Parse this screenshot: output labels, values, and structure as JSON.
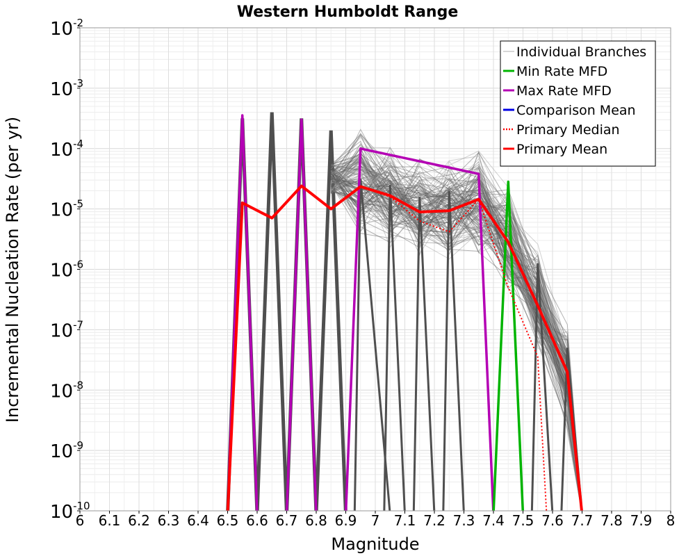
{
  "chart_data": {
    "type": "line",
    "title": "Western Humboldt Range",
    "xlabel": "Magnitude",
    "ylabel": "Incremental Nucleation Rate (per yr)",
    "xlim": [
      6,
      8
    ],
    "ylim_log10": [
      -10,
      -2
    ],
    "y_scale": "log",
    "x_ticks": [
      "6",
      "6.1",
      "6.2",
      "6.3",
      "6.4",
      "6.5",
      "6.6",
      "6.7",
      "6.8",
      "6.9",
      "7",
      "7.1",
      "7.2",
      "7.3",
      "7.4",
      "7.5",
      "7.6",
      "7.7",
      "7.8",
      "7.9",
      "8"
    ],
    "y_ticks": [
      {
        "base": "10",
        "exp": "-2"
      },
      {
        "base": "10",
        "exp": "-3"
      },
      {
        "base": "10",
        "exp": "-4"
      },
      {
        "base": "10",
        "exp": "-5"
      },
      {
        "base": "10",
        "exp": "-6"
      },
      {
        "base": "10",
        "exp": "-7"
      },
      {
        "base": "10",
        "exp": "-8"
      },
      {
        "base": "10",
        "exp": "-9"
      },
      {
        "base": "10",
        "exp": "-10"
      }
    ],
    "grid": true,
    "legend_position": "top-right",
    "legend": [
      {
        "label": "Individual Branches",
        "color": "#c8c8c8",
        "style": "solid"
      },
      {
        "label": "Min Rate MFD",
        "color": "#00b400",
        "style": "solid"
      },
      {
        "label": "Max Rate MFD",
        "color": "#b400b4",
        "style": "solid"
      },
      {
        "label": "Comparison Mean",
        "color": "#0000e6",
        "style": "solid"
      },
      {
        "label": "Primary Median",
        "color": "#ff0000",
        "style": "dotted"
      },
      {
        "label": "Primary Mean",
        "color": "#ff0000",
        "style": "solid"
      }
    ],
    "series": [
      {
        "name": "Primary Mean",
        "color": "#ff0000",
        "x": [
          6.5,
          6.55,
          6.65,
          6.75,
          6.85,
          6.95,
          7.05,
          7.15,
          7.25,
          7.35,
          7.45,
          7.55,
          7.65,
          7.7
        ],
        "log10_y": [
          -10.3,
          -4.9,
          -5.15,
          -4.62,
          -5.0,
          -4.63,
          -4.78,
          -5.05,
          -5.03,
          -4.84,
          -5.55,
          -6.6,
          -7.7,
          -10.3
        ]
      },
      {
        "name": "Primary Median",
        "color": "#ff0000",
        "x": [
          6.95,
          7.05,
          7.15,
          7.25,
          7.35,
          7.45,
          7.55,
          7.58
        ],
        "log10_y": [
          -4.63,
          -4.8,
          -5.2,
          -5.38,
          -4.84,
          -6.3,
          -7.45,
          -10.3
        ]
      },
      {
        "name": "Min Rate MFD",
        "color": "#00b400",
        "x": [
          7.4,
          7.45,
          7.5
        ],
        "log10_y": [
          -10.3,
          -4.55,
          -10.3
        ]
      },
      {
        "name": "Max Rate MFD",
        "color": "#b400b4",
        "x": [
          6.5,
          6.55,
          6.6,
          6.7,
          6.75,
          6.8,
          6.9,
          6.95,
          7.35,
          7.4
        ],
        "log10_y": [
          -10.3,
          -3.45,
          -10.3,
          -10.3,
          -3.52,
          -10.3,
          -10.3,
          -4.0,
          -4.42,
          -10.3
        ]
      }
    ],
    "branch_spikes": [
      {
        "x": 6.55,
        "log10_peak": -3.5
      },
      {
        "x": 6.65,
        "log10_peak": -3.4
      },
      {
        "x": 6.75,
        "log10_peak": -3.5
      },
      {
        "x": 6.85,
        "log10_peak": -3.7
      }
    ]
  }
}
